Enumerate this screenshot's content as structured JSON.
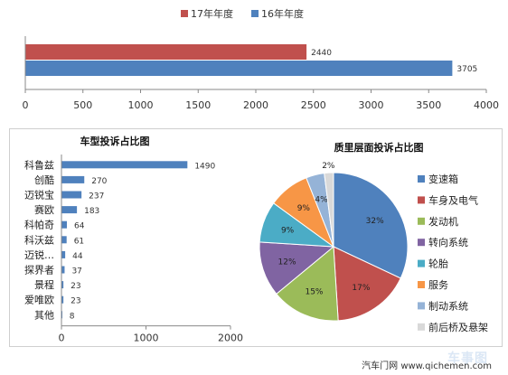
{
  "chart_data": [
    {
      "type": "bar",
      "orientation": "horizontal",
      "categories": [
        ""
      ],
      "series": [
        {
          "name": "17年年度",
          "values": [
            2440
          ],
          "color": "#c0504d"
        },
        {
          "name": "16年年度",
          "values": [
            3705
          ],
          "color": "#4f81bd"
        }
      ],
      "xlim": [
        0,
        4000
      ],
      "xticks": [
        0,
        500,
        1000,
        1500,
        2000,
        2500,
        3000,
        3500,
        4000
      ],
      "legend": "top",
      "grid": false
    },
    {
      "type": "bar",
      "orientation": "horizontal",
      "title": "车型投诉占比图",
      "categories": [
        "科鲁兹",
        "创酷",
        "迈锐宝",
        "赛欧",
        "科帕奇",
        "科沃兹",
        "迈锐…",
        "探界者",
        "景程",
        "爱唯欧",
        "其他"
      ],
      "values": [
        1490,
        270,
        237,
        183,
        64,
        61,
        44,
        37,
        23,
        23,
        8
      ],
      "xlim": [
        0,
        2000
      ],
      "xticks": [
        0,
        1000,
        2000
      ],
      "color": "#4f81bd",
      "grid": false
    },
    {
      "type": "pie",
      "title": "质里层面投诉占比图",
      "slices": [
        {
          "label": "变速箱",
          "value": 32,
          "display": "32%",
          "color": "#4f81bd"
        },
        {
          "label": "车身及电气",
          "value": 17,
          "display": "17%",
          "color": "#c0504d"
        },
        {
          "label": "发动机",
          "value": 15,
          "display": "15%",
          "color": "#9bbb59"
        },
        {
          "label": "转向系统",
          "value": 12,
          "display": "12%",
          "color": "#8064a2"
        },
        {
          "label": "轮胎",
          "value": 9,
          "display": "9%",
          "color": "#4bacc6"
        },
        {
          "label": "服务",
          "value": 9,
          "display": "9%",
          "color": "#f79646"
        },
        {
          "label": "制动系统",
          "value": 4,
          "display": "4%",
          "color": "#95b3d7"
        },
        {
          "label": "前后桥及悬架",
          "value": 2,
          "display": "2%",
          "color": "#d9d9d9"
        }
      ],
      "legend": "right"
    }
  ],
  "footer": {
    "credit": "汽车门网 www.qichemen.com",
    "watermark": "车事图"
  }
}
